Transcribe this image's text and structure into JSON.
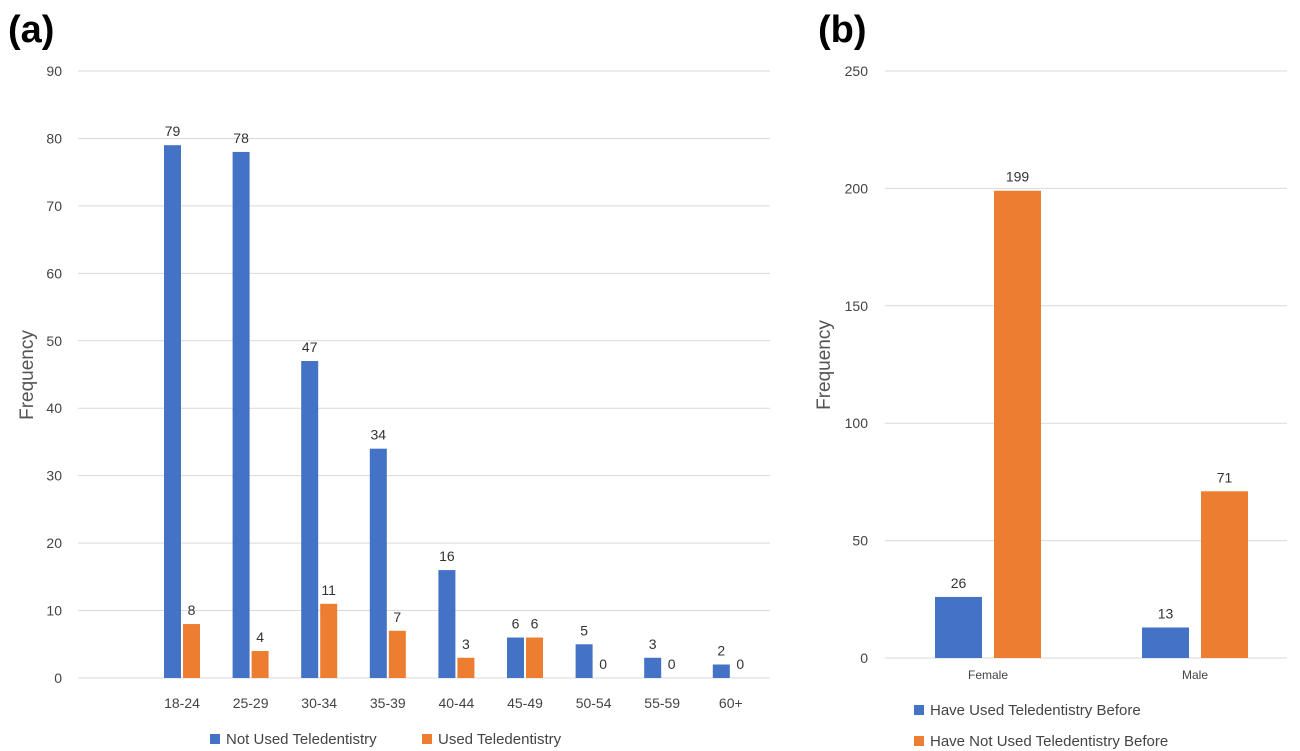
{
  "colors": {
    "blue": "#4472c4",
    "orange": "#ed7d31",
    "grid": "#d9d9d9"
  },
  "chart_data": [
    {
      "panel": "(a)",
      "type": "bar",
      "categories": [
        "18-24",
        "25-29",
        "30-34",
        "35-39",
        "40-44",
        "45-49",
        "50-54",
        "55-59",
        "60+"
      ],
      "series": [
        {
          "name": "Not Used Teledentistry",
          "values": [
            79,
            78,
            47,
            34,
            16,
            6,
            5,
            3,
            2
          ],
          "color": "#4472c4"
        },
        {
          "name": "Used Teledentistry",
          "values": [
            8,
            4,
            11,
            7,
            3,
            6,
            0,
            0,
            0
          ],
          "color": "#ed7d31"
        }
      ],
      "ylabel": "Frequency",
      "xlabel": "",
      "ylim": [
        0,
        90
      ],
      "yticks": [
        0,
        10,
        20,
        30,
        40,
        50,
        60,
        70,
        80,
        90
      ],
      "grid": true,
      "legend": "bottom"
    },
    {
      "panel": "(b)",
      "type": "bar",
      "categories": [
        "Female",
        "Male"
      ],
      "series": [
        {
          "name": "Have Used Teledentistry Before",
          "values": [
            26,
            13
          ],
          "color": "#4472c4"
        },
        {
          "name": "Have Not Used Teledentistry Before",
          "values": [
            199,
            71
          ],
          "color": "#ed7d31"
        }
      ],
      "ylabel": "Frequency",
      "xlabel": "",
      "ylim": [
        0,
        250
      ],
      "yticks": [
        0,
        50,
        100,
        150,
        200,
        250
      ],
      "grid": true,
      "legend": "bottom"
    }
  ]
}
